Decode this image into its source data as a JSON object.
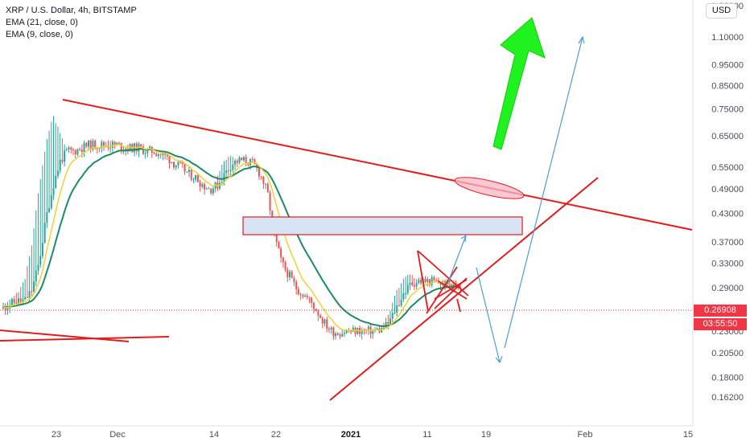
{
  "legend": {
    "symbol": "XRP / U.S. Dollar, 4h, BITSTAMP",
    "ema21": "EMA (21, close, 0)",
    "ema9": "EMA (9, close, 0)"
  },
  "currency_button": "USD",
  "price_tags": {
    "last_price": "0.26908",
    "countdown": "03:55:50"
  },
  "colors": {
    "candle_up": "#26a69a",
    "candle_down": "#ef5350",
    "ema21": "#1b8a6b",
    "ema9": "#f2d035",
    "trendline": "#e31b1b",
    "projection": "#4a9fd8",
    "big_arrow": "#1ff21f",
    "zone_fill": "#d6e2f5",
    "ellipse_fill": "#f7b6c4"
  },
  "chart_data": {
    "type": "candlestick",
    "title": "XRP / U.S. Dollar, 4h, BITSTAMP",
    "y_scale": "log",
    "y_ticks": [
      0.162,
      0.18,
      0.205,
      0.23,
      0.26,
      0.29,
      0.33,
      0.37,
      0.43,
      0.49,
      0.55,
      0.65,
      0.75,
      0.85,
      0.95,
      1.1,
      1.3
    ],
    "y_tick_labels": [
      "0.16200",
      "0.18000",
      "0.20500",
      "0.23000",
      "0.26000",
      "0.29000",
      "0.33000",
      "0.37000",
      "0.43000",
      "0.49000",
      "0.55000",
      "0.65000",
      "0.75000",
      "0.85000",
      "0.95000",
      "1.10000",
      "1.30000"
    ],
    "x_tick_labels": [
      "23",
      "Dec",
      "14",
      "22",
      "2021",
      "11",
      "19",
      "Feb",
      "15"
    ],
    "price_path": [
      [
        0.264,
        0.26
      ],
      [
        0.27,
        0.266
      ],
      [
        0.28,
        0.27
      ],
      [
        0.3,
        0.27
      ],
      [
        0.36,
        0.286
      ],
      [
        0.49,
        0.33
      ],
      [
        0.62,
        0.42
      ],
      [
        0.72,
        0.5
      ],
      [
        0.65,
        0.57
      ],
      [
        0.6,
        0.6
      ],
      [
        0.56,
        0.6
      ],
      [
        0.62,
        0.61
      ],
      [
        0.62,
        0.62
      ],
      [
        0.6,
        0.62
      ],
      [
        0.62,
        0.62
      ],
      [
        0.63,
        0.62
      ],
      [
        0.62,
        0.62
      ],
      [
        0.61,
        0.61
      ],
      [
        0.62,
        0.61
      ],
      [
        0.6,
        0.61
      ],
      [
        0.6,
        0.6
      ],
      [
        0.59,
        0.6
      ],
      [
        0.58,
        0.59
      ],
      [
        0.56,
        0.58
      ],
      [
        0.54,
        0.56
      ],
      [
        0.53,
        0.55
      ],
      [
        0.51,
        0.53
      ],
      [
        0.5,
        0.52
      ],
      [
        0.48,
        0.5
      ],
      [
        0.48,
        0.49
      ],
      [
        0.52,
        0.5
      ],
      [
        0.57,
        0.53
      ],
      [
        0.58,
        0.56
      ],
      [
        0.57,
        0.57
      ],
      [
        0.56,
        0.57
      ],
      [
        0.54,
        0.56
      ],
      [
        0.5,
        0.53
      ],
      [
        0.4,
        0.48
      ],
      [
        0.3,
        0.38
      ],
      [
        0.29,
        0.33
      ],
      [
        0.28,
        0.31
      ],
      [
        0.27,
        0.29
      ],
      [
        0.26,
        0.28
      ],
      [
        0.25,
        0.27
      ],
      [
        0.23,
        0.255
      ],
      [
        0.215,
        0.24
      ],
      [
        0.22,
        0.23
      ],
      [
        0.225,
        0.228
      ],
      [
        0.232,
        0.23
      ],
      [
        0.228,
        0.23
      ],
      [
        0.233,
        0.231
      ],
      [
        0.228,
        0.23
      ],
      [
        0.232,
        0.231
      ],
      [
        0.235,
        0.232
      ],
      [
        0.25,
        0.24
      ],
      [
        0.28,
        0.26
      ],
      [
        0.3,
        0.28
      ],
      [
        0.31,
        0.295
      ],
      [
        0.3,
        0.3
      ],
      [
        0.305,
        0.3
      ],
      [
        0.3,
        0.3
      ],
      [
        0.295,
        0.298
      ],
      [
        0.29,
        0.295
      ],
      [
        0.29,
        0.293
      ],
      [
        0.295,
        0.294
      ]
    ],
    "drawings": {
      "descending_resistance": {
        "from": [
          0.78,
          "Nov 23"
        ],
        "to": [
          0.405,
          "Feb 15+"
        ]
      },
      "ascending_support": {
        "from": [
          0.172,
          "Dec 29"
        ],
        "to": [
          0.54,
          "Feb"
        ]
      },
      "supply_zone": {
        "top": 0.435,
        "bottom": 0.398
      },
      "projected_targets": [
        0.396,
        0.21,
        1.12
      ]
    }
  }
}
